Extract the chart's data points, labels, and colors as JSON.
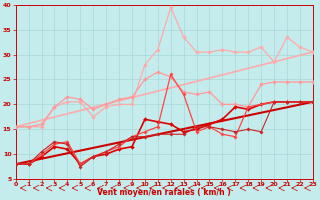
{
  "xlabel": "Vent moyen/en rafales ( km/h )",
  "xlim": [
    0,
    23
  ],
  "ylim": [
    5,
    40
  ],
  "yticks": [
    5,
    10,
    15,
    20,
    25,
    30,
    35,
    40
  ],
  "xticks": [
    0,
    1,
    2,
    3,
    4,
    5,
    6,
    7,
    8,
    9,
    10,
    11,
    12,
    13,
    14,
    15,
    16,
    17,
    18,
    19,
    20,
    21,
    22,
    23
  ],
  "bg_color": "#c5ecec",
  "grid_color": "#a8d8d8",
  "lines": [
    {
      "x": [
        0,
        1,
        2,
        3,
        4,
        5,
        6,
        7,
        8,
        9,
        10,
        11,
        12,
        13,
        14,
        15,
        16,
        17,
        18,
        19,
        20,
        21,
        22,
        23
      ],
      "y": [
        15.5,
        15.5,
        15.5,
        19.5,
        20.5,
        20.5,
        17.5,
        19.5,
        20.0,
        20.0,
        28.0,
        31.0,
        39.5,
        33.5,
        30.5,
        30.5,
        31.0,
        30.5,
        30.5,
        31.5,
        28.5,
        33.5,
        31.5,
        30.5
      ],
      "color": "#ffaaaa",
      "lw": 0.9,
      "marker": "D",
      "ms": 2.0,
      "zorder": 3
    },
    {
      "x": [
        0,
        1,
        2,
        3,
        4,
        5,
        6,
        7,
        8,
        9,
        10,
        11,
        12,
        13,
        14,
        15,
        16,
        17,
        18,
        19,
        20,
        21,
        22,
        23
      ],
      "y": [
        15.5,
        15.5,
        16.0,
        19.5,
        21.5,
        21.0,
        19.0,
        20.0,
        21.0,
        21.5,
        25.0,
        26.5,
        25.5,
        22.5,
        22.0,
        22.5,
        20.0,
        20.0,
        19.5,
        24.0,
        24.5,
        24.5,
        24.5,
        24.5
      ],
      "color": "#ff9999",
      "lw": 0.9,
      "marker": "D",
      "ms": 2.0,
      "zorder": 3
    },
    {
      "x": [
        0,
        1,
        2,
        3,
        4,
        5,
        6,
        7,
        8,
        9,
        10,
        11,
        12,
        13,
        14,
        15,
        16,
        17,
        18,
        19,
        20,
        21,
        22,
        23
      ],
      "y": [
        8.0,
        8.0,
        9.5,
        11.5,
        11.0,
        8.0,
        9.5,
        10.0,
        11.0,
        11.5,
        17.0,
        16.5,
        16.0,
        14.5,
        15.0,
        16.0,
        17.0,
        19.5,
        19.0,
        20.0,
        20.5,
        20.5,
        20.5,
        20.5
      ],
      "color": "#dd0000",
      "lw": 1.2,
      "marker": "D",
      "ms": 2.0,
      "zorder": 4
    },
    {
      "x": [
        0,
        1,
        2,
        3,
        4,
        5,
        6,
        7,
        8,
        9,
        10,
        11,
        12,
        13,
        14,
        15,
        16,
        17,
        18,
        19,
        20,
        21,
        22,
        23
      ],
      "y": [
        8.0,
        8.0,
        10.0,
        12.0,
        12.5,
        8.0,
        9.5,
        10.5,
        11.5,
        13.5,
        14.5,
        15.5,
        26.0,
        22.0,
        14.5,
        15.5,
        14.0,
        13.5,
        19.5,
        20.0,
        20.5,
        20.5,
        20.5,
        20.5
      ],
      "color": "#ff4444",
      "lw": 0.9,
      "marker": "D",
      "ms": 1.8,
      "zorder": 4
    },
    {
      "x": [
        0,
        1,
        2,
        3,
        4,
        5,
        6,
        7,
        8,
        9,
        10,
        11,
        12,
        13,
        14,
        15,
        16,
        17,
        18,
        19,
        20,
        21,
        22,
        23
      ],
      "y": [
        8.0,
        8.0,
        10.5,
        12.5,
        12.0,
        7.5,
        9.5,
        10.5,
        12.0,
        13.5,
        13.5,
        14.0,
        14.0,
        14.0,
        15.5,
        15.5,
        15.0,
        14.5,
        15.0,
        14.5,
        20.5,
        20.5,
        20.5,
        20.5
      ],
      "color": "#cc2222",
      "lw": 0.8,
      "marker": "D",
      "ms": 1.8,
      "zorder": 4
    }
  ],
  "trend_lines": [
    {
      "x": [
        0,
        23
      ],
      "y": [
        8.0,
        20.5
      ],
      "color": "#cc0000",
      "lw": 1.5,
      "zorder": 2
    },
    {
      "x": [
        0,
        23
      ],
      "y": [
        15.5,
        30.5
      ],
      "color": "#ffaaaa",
      "lw": 1.2,
      "zorder": 2
    }
  ]
}
